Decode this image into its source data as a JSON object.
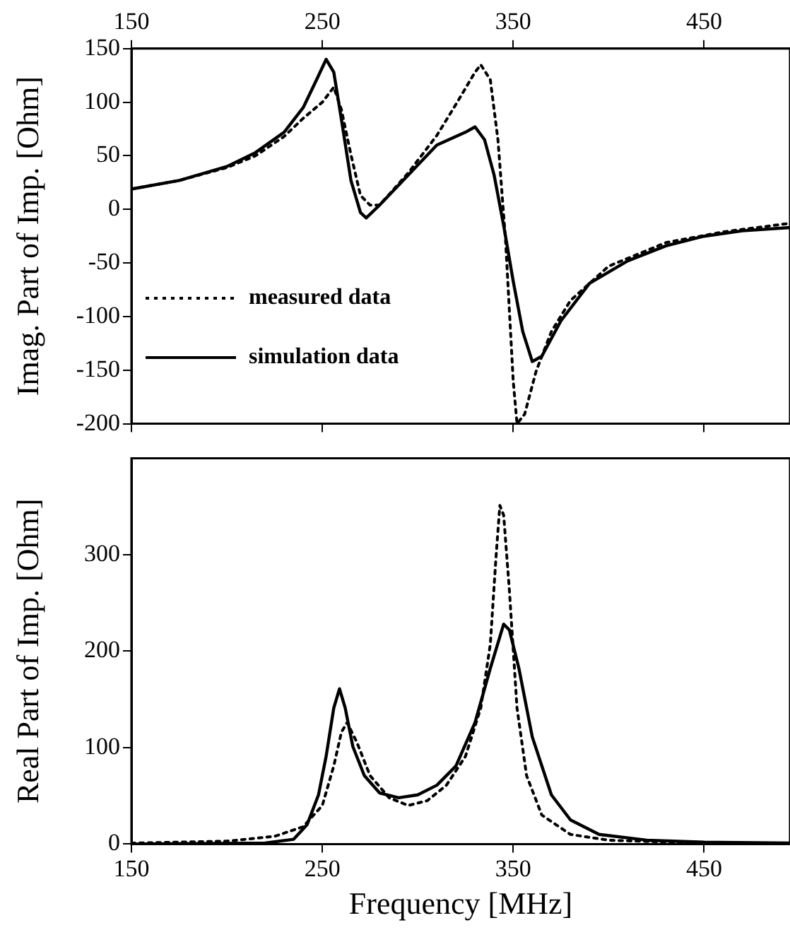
{
  "chart_data": [
    {
      "type": "line",
      "ylabel": "Imag. Part of Imp. [Ohm]",
      "xlim": [
        150,
        495
      ],
      "xticks": [
        150,
        250,
        350,
        450
      ],
      "x2lim": [
        150,
        495
      ],
      "x2ticks": [
        150,
        250,
        350,
        450
      ],
      "tick_labels": "y",
      "ylim": [
        -200,
        150
      ],
      "yticks": [
        -200,
        -150,
        -100,
        -50,
        0,
        50,
        100,
        150
      ],
      "grid": false,
      "legend": "bottom left",
      "series": [
        {
          "name": "measured data",
          "color": "#000000",
          "line_style": "dotted",
          "x": [
            150,
            175,
            200,
            215,
            230,
            240,
            250,
            256,
            260,
            265,
            270,
            275,
            280,
            295,
            310,
            320,
            330,
            333,
            338,
            342,
            346,
            350,
            352,
            356,
            362,
            370,
            380,
            400,
            430,
            460,
            495
          ],
          "values": [
            19,
            27,
            39,
            50,
            68,
            85,
            100,
            114,
            93,
            51,
            13,
            4,
            4,
            34,
            69,
            98,
            128,
            135,
            121,
            65,
            -29,
            -160,
            -200,
            -191,
            -151,
            -114,
            -85,
            -53,
            -31,
            -21,
            -13
          ]
        },
        {
          "name": "simulation data",
          "color": "#000000",
          "line_style": "solid",
          "x": [
            150,
            175,
            200,
            215,
            230,
            240,
            247,
            252,
            256,
            260,
            265,
            270,
            273,
            280,
            295,
            310,
            325,
            330,
            335,
            340,
            345,
            350,
            355,
            360,
            365,
            375,
            390,
            410,
            430,
            450,
            470,
            495
          ],
          "values": [
            19,
            27,
            40,
            53,
            72,
            95,
            121,
            140,
            128,
            84,
            27,
            -3,
            -8,
            4,
            32,
            60,
            72,
            77,
            65,
            32,
            -15,
            -67,
            -114,
            -142,
            -137,
            -104,
            -69,
            -48,
            -34,
            -25,
            -20,
            -17
          ]
        }
      ]
    },
    {
      "type": "line",
      "xlabel": "Frequency [MHz]",
      "ylabel": "Real Part of Imp. [Ohm]",
      "xlim": [
        150,
        495
      ],
      "xticks": [
        150,
        250,
        350,
        450
      ],
      "ylim": [
        0,
        400
      ],
      "yticks": [
        0,
        100,
        200,
        300
      ],
      "grid": false,
      "series": [
        {
          "color": "#000000",
          "line_style": "dotted",
          "x": [
            150,
            200,
            225,
            240,
            250,
            256,
            260,
            263,
            268,
            275,
            285,
            295,
            305,
            315,
            325,
            333,
            338,
            341,
            343,
            345,
            348,
            352,
            357,
            365,
            380,
            400,
            450,
            495
          ],
          "values": [
            1,
            3,
            8,
            18,
            40,
            81,
            116,
            126,
            106,
            71,
            48,
            40,
            45,
            61,
            91,
            141,
            207,
            298,
            351,
            341,
            263,
            141,
            71,
            30,
            10,
            4,
            1,
            0
          ]
        },
        {
          "color": "#000000",
          "line_style": "solid",
          "x": [
            150,
            220,
            235,
            242,
            248,
            252,
            256,
            259,
            262,
            266,
            272,
            280,
            290,
            300,
            310,
            320,
            330,
            338,
            345,
            348,
            353,
            360,
            370,
            380,
            395,
            420,
            450,
            495
          ],
          "values": [
            0,
            1,
            5,
            20,
            51,
            91,
            141,
            161,
            141,
            101,
            71,
            53,
            48,
            51,
            61,
            81,
            126,
            182,
            228,
            222,
            182,
            111,
            51,
            25,
            10,
            4,
            2,
            1
          ]
        }
      ]
    }
  ]
}
